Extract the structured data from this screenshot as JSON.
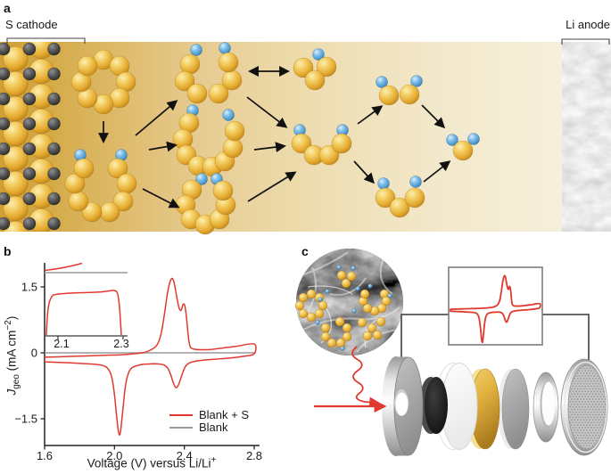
{
  "figure": {
    "panel_labels": {
      "a": "a",
      "b": "b",
      "c": "c"
    }
  },
  "panel_a": {
    "cathode_label": "S cathode",
    "anode_label": "Li anode",
    "colors": {
      "sulfur": "#e7b03c",
      "lithium": "#5fa8d8",
      "carbon_dark": "#4a4a4a",
      "bg_left": "#cf9f38",
      "bg_right": "#f6efda",
      "arrow": "#111111"
    },
    "molecules": [
      {
        "name": "s8-ring",
        "spheres": [
          [
            116,
            67,
            11,
            "S"
          ],
          [
            134,
            74,
            11,
            "S"
          ],
          [
            141,
            92,
            11,
            "S"
          ],
          [
            134,
            110,
            11,
            "S"
          ],
          [
            116,
            117,
            11,
            "S"
          ],
          [
            98,
            110,
            11,
            "S"
          ],
          [
            91,
            92,
            11,
            "S"
          ],
          [
            98,
            74,
            11,
            "S"
          ]
        ]
      },
      {
        "name": "li2s8-open-ring",
        "spheres": [
          [
            90,
            174,
            6.5,
            "L"
          ],
          [
            136,
            174,
            6.5,
            "L"
          ],
          [
            132,
            189,
            11,
            "S"
          ],
          [
            142,
            206,
            11,
            "S"
          ],
          [
            138,
            226,
            11,
            "S"
          ],
          [
            123,
            238,
            11,
            "S"
          ],
          [
            103,
            238,
            11,
            "S"
          ],
          [
            88,
            226,
            11,
            "S"
          ],
          [
            84,
            206,
            11,
            "S"
          ],
          [
            94,
            189,
            11,
            "S"
          ]
        ]
      },
      {
        "name": "li2s6-chain-top",
        "spheres": [
          [
            220,
            56,
            6.5,
            "L"
          ],
          [
            252,
            54,
            6.5,
            "L"
          ],
          [
            213,
            72,
            11,
            "S"
          ],
          [
            207,
            91,
            11,
            "S"
          ],
          [
            221,
            105,
            11,
            "S"
          ],
          [
            245,
            105,
            11,
            "S"
          ],
          [
            260,
            90,
            11,
            "S"
          ],
          [
            256,
            70,
            11,
            "S"
          ]
        ]
      },
      {
        "name": "li2s8-chain-middle",
        "spheres": [
          [
            216,
            124,
            6.5,
            "L"
          ],
          [
            256,
            129,
            6.5,
            "L"
          ],
          [
            212,
            138,
            11,
            "S"
          ],
          [
            205,
            156,
            11,
            "S"
          ],
          [
            209,
            174,
            11,
            "S"
          ],
          [
            222,
            186,
            11,
            "S"
          ],
          [
            238,
            187,
            11,
            "S"
          ],
          [
            252,
            181,
            11,
            "S"
          ],
          [
            261,
            166,
            11,
            "S"
          ],
          [
            263,
            147,
            11,
            "S"
          ]
        ]
      },
      {
        "name": "li2s6-chain-bottom",
        "spheres": [
          [
            226,
            201,
            6.5,
            "L"
          ],
          [
            243,
            201,
            6.5,
            "L"
          ],
          [
            215,
            213,
            11,
            "S"
          ],
          [
            208,
            230,
            11,
            "S"
          ],
          [
            214,
            246,
            11,
            "S"
          ],
          [
            230,
            252,
            11,
            "S"
          ],
          [
            246,
            246,
            11,
            "S"
          ],
          [
            253,
            230,
            11,
            "S"
          ],
          [
            250,
            214,
            11,
            "S"
          ]
        ]
      },
      {
        "name": "lis3-cluster",
        "spheres": [
          [
            357,
            61,
            6.5,
            "L"
          ],
          [
            340,
            76,
            11,
            "S"
          ],
          [
            366,
            75,
            11,
            "S"
          ],
          [
            353,
            90,
            11,
            "S"
          ]
        ]
      },
      {
        "name": "li2s4-chain",
        "spheres": [
          [
            336,
            146,
            6.5,
            "L"
          ],
          [
            384,
            146,
            6.5,
            "L"
          ],
          [
            338,
            161,
            11,
            "S"
          ],
          [
            352,
            174,
            11,
            "S"
          ],
          [
            369,
            174,
            11,
            "S"
          ],
          [
            383,
            161,
            11,
            "S"
          ]
        ]
      },
      {
        "name": "li2s2-molecule",
        "spheres": [
          [
            428,
            92,
            6.5,
            "L"
          ],
          [
            467,
            91,
            6.5,
            "L"
          ],
          [
            436,
            107,
            11,
            "S"
          ],
          [
            459,
            106,
            11,
            "S"
          ]
        ]
      },
      {
        "name": "li2s3-molecule",
        "spheres": [
          [
            430,
            206,
            6.5,
            "L"
          ],
          [
            466,
            204,
            6.5,
            "L"
          ],
          [
            432,
            222,
            11,
            "S"
          ],
          [
            448,
            233,
            11,
            "S"
          ],
          [
            465,
            222,
            11,
            "S"
          ]
        ]
      },
      {
        "name": "li2s-molecule",
        "spheres": [
          [
            507,
            157,
            6.5,
            "L"
          ],
          [
            531,
            156,
            6.5,
            "L"
          ],
          [
            519,
            169,
            11,
            "S"
          ]
        ]
      }
    ],
    "arrows": [
      [
        116,
        136,
        116,
        158,
        0
      ],
      [
        152,
        152,
        197,
        114,
        0
      ],
      [
        167,
        168,
        196,
        163,
        0
      ],
      [
        160,
        212,
        199,
        232,
        0
      ],
      [
        281,
        80,
        322,
        80,
        1
      ],
      [
        277,
        109,
        320,
        142,
        0
      ],
      [
        285,
        168,
        318,
        164,
        0
      ],
      [
        278,
        226,
        330,
        194,
        0
      ],
      [
        401,
        139,
        427,
        120,
        0
      ],
      [
        397,
        181,
        418,
        204,
        0
      ],
      [
        473,
        118,
        497,
        142,
        0
      ],
      [
        475,
        204,
        503,
        182,
        0
      ]
    ]
  },
  "chart_data": {
    "type": "line",
    "title": "",
    "xlabel": "Voltage (V) versus Li/Li+",
    "ylabel": "Jgeo (mA cm-2)",
    "xlabel_main": "Voltage (V) versus Li/Li",
    "xlabel_sup": "+",
    "ylabel_j": "J",
    "ylabel_sub": "geo",
    "ylabel_rest": " (mA cm",
    "ylabel_sup": "−2",
    "ylabel_end": ")",
    "xlim": [
      1.6,
      2.8
    ],
    "ylim": [
      -2.1,
      2.05
    ],
    "x_ticks": [
      1.6,
      2.0,
      2.4,
      2.8
    ],
    "x_tick_labels": [
      "1.6",
      "2.0",
      "2.4",
      "2.8"
    ],
    "y_ticks": [
      1.5,
      0,
      -1.5
    ],
    "y_tick_labels": [
      "1.5",
      "0",
      "−1.5"
    ],
    "grid": false,
    "legend_position": "lower right",
    "legend": [
      {
        "label": "Blank + S",
        "color": "#e0392f"
      },
      {
        "label": "Blank",
        "color": "#9a9a9a"
      }
    ],
    "inset": {
      "tick_values": [
        2.1,
        2.3
      ],
      "tick_labels": [
        "2.1",
        "2.3"
      ]
    },
    "series": [
      {
        "name": "Blank + S",
        "color": "#e0392f",
        "closed": true,
        "points": [
          [
            1.6,
            -0.1
          ],
          [
            1.72,
            -0.085
          ],
          [
            1.84,
            -0.07
          ],
          [
            1.95,
            -0.055
          ],
          [
            2.03,
            -0.045
          ],
          [
            2.1,
            -0.025
          ],
          [
            2.16,
            0.0
          ],
          [
            2.2,
            0.05
          ],
          [
            2.24,
            0.16
          ],
          [
            2.265,
            0.4
          ],
          [
            2.285,
            0.85
          ],
          [
            2.305,
            1.4
          ],
          [
            2.325,
            1.68
          ],
          [
            2.34,
            1.62
          ],
          [
            2.355,
            1.3
          ],
          [
            2.37,
            1.02
          ],
          [
            2.382,
            0.97
          ],
          [
            2.392,
            1.1
          ],
          [
            2.402,
            1.08
          ],
          [
            2.412,
            0.82
          ],
          [
            2.422,
            0.4
          ],
          [
            2.432,
            0.16
          ],
          [
            2.45,
            0.09
          ],
          [
            2.5,
            0.07
          ],
          [
            2.56,
            0.08
          ],
          [
            2.62,
            0.11
          ],
          [
            2.7,
            0.15
          ],
          [
            2.8,
            0.2
          ],
          [
            2.8,
            -0.02
          ],
          [
            2.74,
            -0.08
          ],
          [
            2.66,
            -0.12
          ],
          [
            2.56,
            -0.15
          ],
          [
            2.48,
            -0.18
          ],
          [
            2.43,
            -0.23
          ],
          [
            2.405,
            -0.32
          ],
          [
            2.385,
            -0.52
          ],
          [
            2.365,
            -0.74
          ],
          [
            2.35,
            -0.79
          ],
          [
            2.337,
            -0.68
          ],
          [
            2.322,
            -0.5
          ],
          [
            2.305,
            -0.35
          ],
          [
            2.285,
            -0.28
          ],
          [
            2.26,
            -0.255
          ],
          [
            2.22,
            -0.25
          ],
          [
            2.17,
            -0.26
          ],
          [
            2.13,
            -0.29
          ],
          [
            2.1,
            -0.34
          ],
          [
            2.08,
            -0.46
          ],
          [
            2.063,
            -0.75
          ],
          [
            2.048,
            -1.3
          ],
          [
            2.036,
            -1.75
          ],
          [
            2.028,
            -1.87
          ],
          [
            2.02,
            -1.72
          ],
          [
            2.01,
            -1.35
          ],
          [
            2.0,
            -0.95
          ],
          [
            1.988,
            -0.62
          ],
          [
            1.975,
            -0.44
          ],
          [
            1.958,
            -0.34
          ],
          [
            1.935,
            -0.29
          ],
          [
            1.9,
            -0.265
          ],
          [
            1.84,
            -0.25
          ],
          [
            1.75,
            -0.23
          ],
          [
            1.6,
            -0.205
          ]
        ]
      },
      {
        "name": "Blank",
        "color": "#9a9a9a",
        "closed": false,
        "points": [
          [
            1.6,
            0
          ],
          [
            2.8,
            0
          ]
        ]
      }
    ]
  },
  "panel_c": {
    "sem_molecules": [
      {
        "name": "sem-ring-left",
        "spheres": [
          [
            349,
            330,
            5,
            "S"
          ],
          [
            358,
            334,
            5,
            "S"
          ],
          [
            362,
            343,
            5,
            "S"
          ],
          [
            358,
            352,
            5,
            "S"
          ],
          [
            349,
            356,
            5,
            "S"
          ],
          [
            340,
            352,
            5,
            "S"
          ],
          [
            336,
            343,
            5,
            "S"
          ],
          [
            340,
            334,
            5,
            "S"
          ]
        ]
      },
      {
        "name": "sem-ring-right",
        "spheres": [
          [
            431,
            330,
            5,
            "S"
          ],
          [
            433,
            338,
            5,
            "S"
          ],
          [
            428,
            346,
            5,
            "S"
          ],
          [
            420,
            349,
            5,
            "S"
          ],
          [
            412,
            346,
            5,
            "S"
          ],
          [
            407,
            338,
            5,
            "S"
          ],
          [
            409,
            330,
            5,
            "S"
          ]
        ]
      },
      {
        "name": "sem-ring-bottom",
        "spheres": [
          [
            381,
            361,
            5,
            "S"
          ],
          [
            389,
            368,
            5,
            "S"
          ],
          [
            389,
            378,
            5,
            "S"
          ],
          [
            382,
            385,
            5,
            "S"
          ],
          [
            372,
            385,
            5,
            "S"
          ],
          [
            365,
            378,
            5,
            "S"
          ],
          [
            365,
            368,
            5,
            "S"
          ]
        ]
      },
      {
        "name": "sem-cluster-bottom-right",
        "spheres": [
          [
            406,
            362,
            5,
            "S"
          ],
          [
            417,
            368,
            5,
            "S"
          ],
          [
            427,
            361,
            5,
            "S"
          ],
          [
            412,
            377,
            5,
            "S"
          ],
          [
            423,
            376,
            5,
            "S"
          ]
        ]
      },
      {
        "name": "sem-cluster-top",
        "spheres": [
          [
            383,
            309,
            5,
            "S"
          ],
          [
            394,
            310,
            5,
            "S"
          ],
          [
            388,
            318,
            5,
            "S"
          ]
        ]
      },
      {
        "name": "sem-li-dots",
        "spheres": [
          [
            380,
            300,
            2.3,
            "L"
          ],
          [
            396,
            301,
            2.3,
            "L"
          ],
          [
            367,
            327,
            2.3,
            "L"
          ],
          [
            401,
            324,
            2.3,
            "L"
          ],
          [
            437,
            332,
            2.3,
            "L"
          ],
          [
            356,
            362,
            2.3,
            "L"
          ],
          [
            397,
            349,
            2.3,
            "L"
          ],
          [
            384,
            391,
            2.3,
            "L"
          ],
          [
            415,
            321,
            2.3,
            "L"
          ],
          [
            359,
            336,
            2.3,
            "L"
          ]
        ]
      }
    ]
  }
}
